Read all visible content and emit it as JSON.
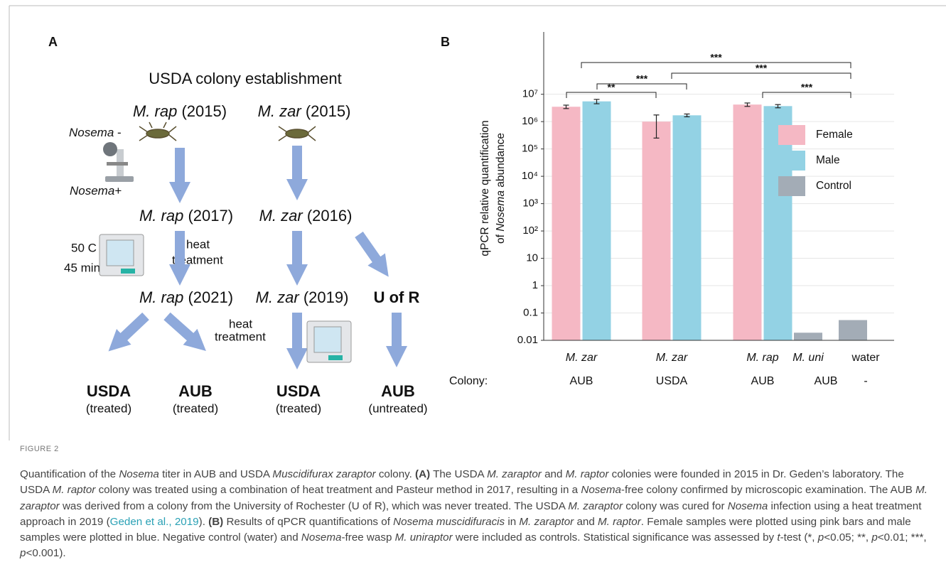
{
  "panel_a": {
    "label": "A",
    "title": "USDA colony establishment",
    "nodes": [
      {
        "species": "M. rap",
        "year": "(2015)"
      },
      {
        "species": "M. zar",
        "year": "(2015)"
      },
      {
        "species": "M. rap",
        "year": "(2017)"
      },
      {
        "species": "M. zar",
        "year": "(2016)"
      },
      {
        "species": "M. rap",
        "year": "(2021)"
      },
      {
        "species": "M. zar",
        "year": "(2019)"
      }
    ],
    "origin": "U of R",
    "nosema_neg": {
      "name": "Nosema",
      "sign": "-"
    },
    "nosema_pos": {
      "name": "Nosema",
      "sign": "+"
    },
    "incubator_settings": [
      "50 C",
      "45 min"
    ],
    "heat_label_1": [
      "heat",
      "treatment"
    ],
    "heat_label_2": [
      "heat",
      "treatment"
    ],
    "outcomes": [
      {
        "colony": "USDA",
        "status": "(treated)"
      },
      {
        "colony": "AUB",
        "status": "(treated)"
      },
      {
        "colony": "USDA",
        "status": "(treated)"
      },
      {
        "colony": "AUB",
        "status": "(untreated)"
      }
    ]
  },
  "chart_data": {
    "type": "bar",
    "panel_label": "B",
    "ylabel": [
      [
        {
          "text": "qPCR relative quantification"
        }
      ],
      [
        {
          "text": "of "
        },
        {
          "text": "Nosema",
          "style": "italic"
        },
        {
          "text": " abundance"
        }
      ]
    ],
    "categories": [
      "M. zar",
      "M. zar",
      "M. rap",
      "M. uni",
      "water"
    ],
    "category_italic": [
      true,
      true,
      true,
      true,
      false
    ],
    "colony_label": "Colony:",
    "colonies": [
      "AUB",
      "USDA",
      "AUB",
      "AUB",
      "-"
    ],
    "log_y": true,
    "ylim": [
      0.01,
      1900000000
    ],
    "yticks": [
      0.01,
      0.1,
      1,
      10,
      {
        "value": 100,
        "label": "10²"
      },
      {
        "value": 1000,
        "label": "10³"
      },
      {
        "value": 10000,
        "label": "10⁴"
      },
      {
        "value": 100000,
        "label": "10⁵"
      },
      {
        "value": 1000000,
        "label": "10⁶"
      },
      {
        "value": 10000000,
        "label": "10⁷"
      }
    ],
    "grid": true,
    "legend": "right",
    "series": [
      {
        "name": "Female",
        "color": "#f5b8c4",
        "values": [
          3500000,
          1000000,
          4200000,
          null,
          null
        ],
        "errors": [
          500000,
          750000,
          600000,
          null,
          null
        ]
      },
      {
        "name": "Male",
        "color": "#93d2e4",
        "values": [
          5500000,
          1700000,
          3700000,
          null,
          null
        ],
        "errors": [
          1000000,
          200000,
          500000,
          null,
          null
        ]
      },
      {
        "name": "Control",
        "color": "#a3acb6",
        "values": [
          null,
          null,
          null,
          0.019,
          0.055
        ],
        "errors": [
          null,
          null,
          null,
          null,
          null
        ]
      }
    ],
    "significance": [
      "***",
      "***",
      "***",
      "**",
      "***"
    ]
  },
  "caption": {
    "label": "FIGURE 2",
    "runs": [
      {
        "text": "Quantification of the "
      },
      {
        "text": "Nosema",
        "style": "italic"
      },
      {
        "text": " titer in AUB and USDA "
      },
      {
        "text": "Muscidifurax zaraptor",
        "style": "italic"
      },
      {
        "text": " colony. "
      },
      {
        "text": "(A)",
        "style": "bold"
      },
      {
        "text": " The USDA "
      },
      {
        "text": "M. zaraptor",
        "style": "italic"
      },
      {
        "text": " and "
      },
      {
        "text": "M. raptor",
        "style": "italic"
      },
      {
        "text": " colonies were founded in 2015 in Dr. Geden’s laboratory. The USDA "
      },
      {
        "text": "M. raptor",
        "style": "italic"
      },
      {
        "text": " colony was treated using a combination of heat treatment and Pasteur method in 2017, resulting in a "
      },
      {
        "text": "Nosema",
        "style": "italic"
      },
      {
        "text": "-free colony confirmed by microscopic examination. The AUB "
      },
      {
        "text": "M. zaraptor",
        "style": "italic"
      },
      {
        "text": " was derived from a colony from the University of Rochester (U of R), which was never treated. The USDA "
      },
      {
        "text": "M. zaraptor",
        "style": "italic"
      },
      {
        "text": " colony was cured for "
      },
      {
        "text": "Nosema",
        "style": "italic"
      },
      {
        "text": " infection using a heat treatment approach in 2019 ("
      },
      {
        "text": "Geden et al., 2019",
        "style": "link"
      },
      {
        "text": "). "
      },
      {
        "text": "(B)",
        "style": "bold"
      },
      {
        "text": " Results of qPCR quantifications of "
      },
      {
        "text": "Nosema muscidifuracis",
        "style": "italic"
      },
      {
        "text": " in "
      },
      {
        "text": "M. zaraptor",
        "style": "italic"
      },
      {
        "text": " and "
      },
      {
        "text": "M. raptor",
        "style": "italic"
      },
      {
        "text": ". Female samples were plotted using pink bars and male samples were plotted in blue. Negative control (water) and "
      },
      {
        "text": "Nosema",
        "style": "italic"
      },
      {
        "text": "-free wasp "
      },
      {
        "text": "M. uniraptor",
        "style": "italic"
      },
      {
        "text": " were included as controls. Statistical significance was assessed by "
      },
      {
        "text": "t",
        "style": "italic"
      },
      {
        "text": "-test (*, "
      },
      {
        "text": "p",
        "style": "italic"
      },
      {
        "text": "<0.05; **, "
      },
      {
        "text": "p",
        "style": "italic"
      },
      {
        "text": "<0.01; ***, "
      },
      {
        "text": "p",
        "style": "italic"
      },
      {
        "text": "<0.001)."
      }
    ]
  }
}
